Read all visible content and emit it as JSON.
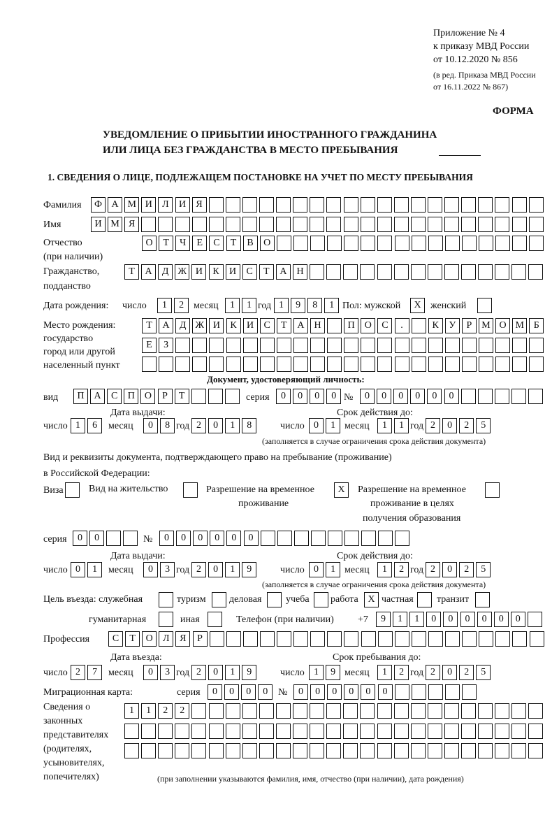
{
  "header": {
    "appendix": "Приложение № 4",
    "order": "к приказу МВД России",
    "order_date": "от 10.12.2020 № 856",
    "edition1": "(в ред. Приказа МВД России",
    "edition2": "от 16.11.2022 № 867)",
    "forma": "ФОРМА",
    "title1": "УВЕДОМЛЕНИЕ О ПРИБЫТИИ ИНОСТРАННОГО ГРАЖДАНИНА",
    "title2": "ИЛИ ЛИЦА БЕЗ ГРАЖДАНСТВА В МЕСТО ПРЕБЫВАНИЯ",
    "section1": "1. СВЕДЕНИЯ О ЛИЦЕ, ПОДЛЕЖАЩЕМ ПОСТАНОВКЕ НА УЧЕТ ПО МЕСТУ ПРЕБЫВАНИЯ"
  },
  "labels": {
    "surname": "Фамилия",
    "name": "Имя",
    "patronymic": "Отчество",
    "patronymic_note": "(при наличии)",
    "citizenship1": "Гражданство,",
    "citizenship2": "подданство",
    "birth_date": "Дата рождения:",
    "day": "число",
    "month": "месяц",
    "year": "год",
    "sex": "Пол: мужской",
    "female": "женский",
    "birthplace1": "Место рождения:",
    "birthplace2": "государство",
    "birthplace3": "город или другой",
    "birthplace4": "населенный пункт",
    "id_doc": "Документ, удостоверяющий личность:",
    "kind": "вид",
    "series": "серия",
    "number": "№",
    "issue_date": "Дата выдачи:",
    "valid_until": "Срок действия до:",
    "validity_note": "(заполняется в случае ограничения срока действия документа)",
    "stay_doc1": "Вид и реквизиты документа, подтверждающего право на пребывание (проживание)",
    "stay_doc2": "в Российской Федерации:",
    "visa": "Виза",
    "residence": "Вид на жительство",
    "temp1": "Разрешение на временное",
    "temp2": "проживание",
    "edu1": "Разрешение на временное",
    "edu2": "проживание в целях",
    "edu3": "получения образования",
    "purpose": "Цель въезда: служебная",
    "tourism": "туризм",
    "business": "деловая",
    "study": "учеба",
    "work": "работа",
    "private": "частная",
    "transit": "транзит",
    "humanitarian": "гуманитарная",
    "other": "иная",
    "phone": "Телефон (при наличии)",
    "phone_prefix": "+7",
    "profession": "Профессия",
    "entry_date": "Дата въезда:",
    "stay_until": "Срок пребывания до:",
    "migration_card": "Миграционная карта:",
    "reps1": "Сведения о",
    "reps2": "законных",
    "reps3": "представителях",
    "reps4": "(родителях,",
    "reps5": "усыновителях,",
    "reps6": "попечителях)",
    "reps_note": "(при заполнении указываются фамилия, имя, отчество (при наличии), дата рождения)"
  },
  "fields": {
    "surname": "ФАМИЛИЯ",
    "name": "ИМЯ",
    "patronymic": "ОТЧЕСТВО",
    "citizenship": "ТАДЖИКИСТАН",
    "birth_day": "12",
    "birth_month": "11",
    "birth_year": "1981",
    "sex_male": "X",
    "sex_female": "",
    "birthplace_1": "ТАДЖИКИСТАН ПОС. КУРМОМБ",
    "birthplace_2": "ЕЗ",
    "birthplace_3": "",
    "id_kind": "ПАСПОРТ",
    "id_series": "0000",
    "id_number": "000000",
    "id_issue_day": "16",
    "id_issue_month": "08",
    "id_issue_year": "2018",
    "id_valid_day": "01",
    "id_valid_month": "11",
    "id_valid_year": "2025",
    "visa": "",
    "residence": "",
    "temp_residence": "X",
    "temp_residence_edu": "",
    "stay_series": "00",
    "stay_number": "000000",
    "stay_issue_day": "01",
    "stay_issue_month": "03",
    "stay_issue_year": "2019",
    "stay_valid_day": "01",
    "stay_valid_month": "12",
    "stay_valid_year": "2025",
    "purpose_service": "",
    "purpose_tourism": "",
    "purpose_business": "",
    "purpose_study": "",
    "purpose_work": "X",
    "purpose_private": "",
    "purpose_transit": "",
    "purpose_humanitarian": "",
    "purpose_other": "",
    "phone": "911000000",
    "profession": "СТОЛЯР",
    "entry_day": "27",
    "entry_month": "03",
    "entry_year": "2019",
    "stay_until_day": "19",
    "stay_until_month": "12",
    "stay_until_year": "2025",
    "mc_series": "0000",
    "mc_number": "000000",
    "reps_1": "1122",
    "reps_2": "",
    "reps_3": ""
  }
}
